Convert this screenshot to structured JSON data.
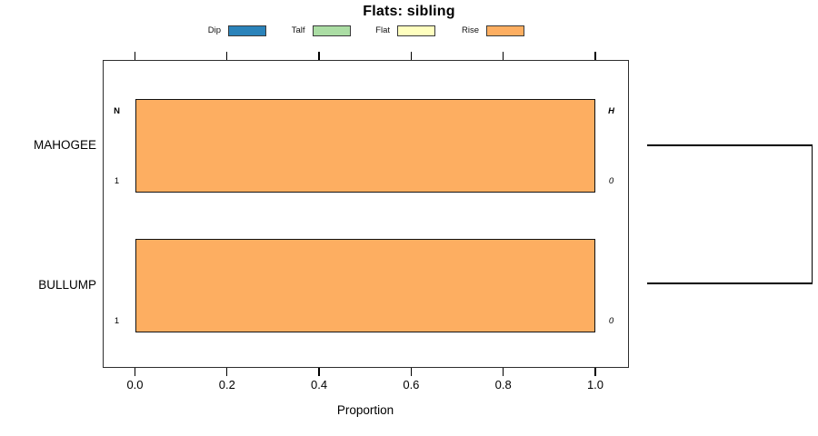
{
  "chart_data": {
    "type": "bar",
    "orientation": "horizontal",
    "title": "Flats: sibling",
    "xlabel": "Proportion",
    "xlim": [
      0,
      1
    ],
    "xticks": [
      "0.0",
      "0.2",
      "0.4",
      "0.6",
      "0.8",
      "1.0"
    ],
    "grid": false,
    "categories": [
      "MAHOGEE",
      "BULLUMP"
    ],
    "series": [
      {
        "name": "Dip",
        "color": "#2b83ba",
        "values": [
          0,
          0
        ]
      },
      {
        "name": "Talf",
        "color": "#abdda4",
        "values": [
          0,
          0
        ]
      },
      {
        "name": "Flat",
        "color": "#ffffbf",
        "values": [
          0,
          0
        ]
      },
      {
        "name": "Rise",
        "color": "#fdae61",
        "values": [
          1,
          1
        ]
      }
    ],
    "legend": {
      "position": "top",
      "entries": [
        {
          "label": "Dip",
          "color": "#2b83ba"
        },
        {
          "label": "Talf",
          "color": "#abdda4"
        },
        {
          "label": "Flat",
          "color": "#ffffbf"
        },
        {
          "label": "Rise",
          "color": "#fdae61"
        }
      ]
    },
    "bar_annotations": {
      "left_header": "N",
      "right_header": "H",
      "rows": [
        {
          "category": "MAHOGEE",
          "left": "1",
          "right": "0"
        },
        {
          "category": "BULLUMP",
          "left": "1",
          "right": "0"
        }
      ]
    },
    "dendrogram": {
      "joins": [
        "MAHOGEE",
        "BULLUMP"
      ]
    },
    "colors": {
      "bar_border": "#121212",
      "axis": "#000000",
      "box_border": "#2e2e2e"
    }
  }
}
